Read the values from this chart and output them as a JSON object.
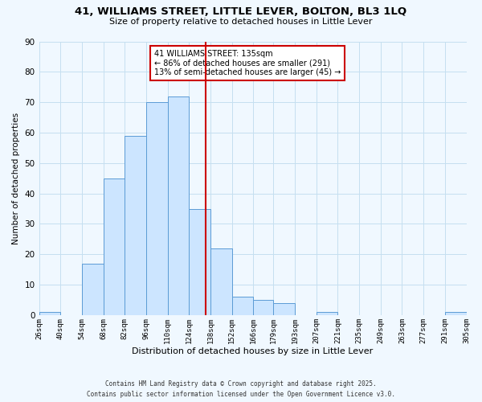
{
  "title": "41, WILLIAMS STREET, LITTLE LEVER, BOLTON, BL3 1LQ",
  "subtitle": "Size of property relative to detached houses in Little Lever",
  "xlabel": "Distribution of detached houses by size in Little Lever",
  "ylabel": "Number of detached properties",
  "bin_labels": [
    "26sqm",
    "40sqm",
    "54sqm",
    "68sqm",
    "82sqm",
    "96sqm",
    "110sqm",
    "124sqm",
    "138sqm",
    "152sqm",
    "166sqm",
    "179sqm",
    "193sqm",
    "207sqm",
    "221sqm",
    "235sqm",
    "249sqm",
    "263sqm",
    "277sqm",
    "291sqm",
    "305sqm"
  ],
  "bin_edges": [
    26,
    40,
    54,
    68,
    82,
    96,
    110,
    124,
    138,
    152,
    166,
    179,
    193,
    207,
    221,
    235,
    249,
    263,
    277,
    291,
    305
  ],
  "bar_heights": [
    1,
    0,
    17,
    45,
    59,
    70,
    72,
    35,
    22,
    6,
    5,
    4,
    0,
    1,
    0,
    0,
    0,
    0,
    0,
    1
  ],
  "bar_color": "#cce5ff",
  "bar_edge_color": "#5b9bd5",
  "vline_x": 135,
  "vline_color": "#cc0000",
  "ylim": [
    0,
    90
  ],
  "yticks": [
    0,
    10,
    20,
    30,
    40,
    50,
    60,
    70,
    80,
    90
  ],
  "annotation_title": "41 WILLIAMS STREET: 135sqm",
  "annotation_line1": "← 86% of detached houses are smaller (291)",
  "annotation_line2": "13% of semi-detached houses are larger (45) →",
  "annotation_box_color": "#ffffff",
  "annotation_box_edge_color": "#cc0000",
  "background_color": "#f0f8ff",
  "grid_color": "#c5dff0",
  "footer1": "Contains HM Land Registry data © Crown copyright and database right 2025.",
  "footer2": "Contains public sector information licensed under the Open Government Licence v3.0."
}
